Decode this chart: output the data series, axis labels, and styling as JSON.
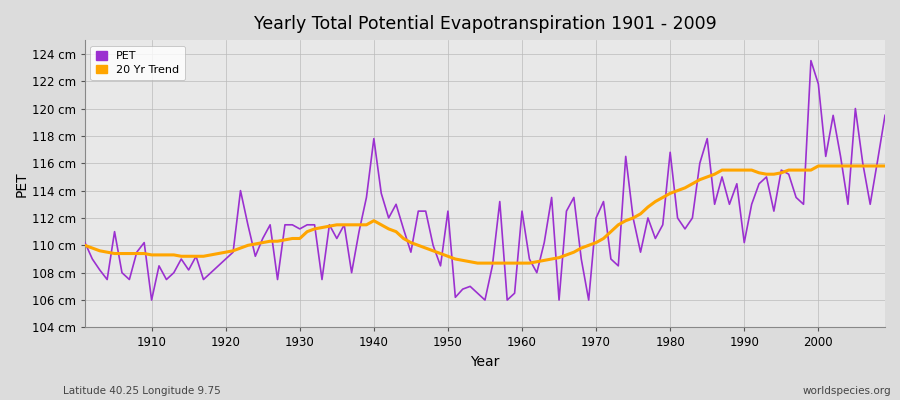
{
  "title": "Yearly Total Potential Evapotranspiration 1901 - 2009",
  "xlabel": "Year",
  "ylabel": "PET",
  "subtitle_left": "Latitude 40.25 Longitude 9.75",
  "subtitle_right": "worldspecies.org",
  "pet_color": "#9B30D0",
  "trend_color": "#FFA500",
  "bg_color": "#DCDCDC",
  "plot_bg_color": "#E8E8E8",
  "ylim": [
    104,
    125
  ],
  "yticks": [
    104,
    106,
    108,
    110,
    112,
    114,
    116,
    118,
    120,
    122,
    124
  ],
  "ytick_labels": [
    "104 cm",
    "106 cm",
    "108 cm",
    "110 cm",
    "112 cm",
    "114 cm",
    "116 cm",
    "118 cm",
    "120 cm",
    "122 cm",
    "124 cm"
  ],
  "years": [
    1901,
    1902,
    1903,
    1904,
    1905,
    1906,
    1907,
    1908,
    1909,
    1910,
    1911,
    1912,
    1913,
    1914,
    1915,
    1916,
    1917,
    1918,
    1919,
    1920,
    1921,
    1922,
    1923,
    1924,
    1925,
    1926,
    1927,
    1928,
    1929,
    1930,
    1931,
    1932,
    1933,
    1934,
    1935,
    1936,
    1937,
    1938,
    1939,
    1940,
    1941,
    1942,
    1943,
    1944,
    1945,
    1946,
    1947,
    1948,
    1949,
    1950,
    1951,
    1952,
    1953,
    1954,
    1955,
    1956,
    1957,
    1958,
    1959,
    1960,
    1961,
    1962,
    1963,
    1964,
    1965,
    1966,
    1967,
    1968,
    1969,
    1970,
    1971,
    1972,
    1973,
    1974,
    1975,
    1976,
    1977,
    1978,
    1979,
    1980,
    1981,
    1982,
    1983,
    1984,
    1985,
    1986,
    1987,
    1988,
    1989,
    1990,
    1991,
    1992,
    1993,
    1994,
    1995,
    1996,
    1997,
    1998,
    1999,
    2000,
    2001,
    2002,
    2003,
    2004,
    2005,
    2006,
    2007,
    2008,
    2009
  ],
  "pet_values": [
    110.2,
    109.0,
    108.2,
    107.5,
    111.0,
    108.0,
    107.5,
    109.5,
    110.2,
    106.0,
    108.5,
    107.5,
    108.0,
    109.0,
    108.2,
    109.2,
    107.5,
    108.0,
    108.5,
    109.0,
    109.5,
    114.0,
    111.5,
    109.2,
    110.5,
    111.5,
    107.5,
    111.5,
    111.5,
    111.2,
    111.5,
    111.5,
    107.5,
    111.5,
    110.5,
    111.5,
    108.0,
    111.0,
    113.5,
    117.8,
    113.8,
    112.0,
    113.0,
    111.2,
    109.5,
    112.5,
    112.5,
    110.0,
    108.5,
    112.5,
    106.2,
    106.8,
    107.0,
    106.5,
    106.0,
    108.5,
    113.2,
    106.0,
    106.5,
    112.5,
    109.0,
    108.0,
    110.2,
    113.5,
    106.0,
    112.5,
    113.5,
    109.0,
    106.0,
    112.0,
    113.2,
    109.0,
    108.5,
    116.5,
    112.0,
    109.5,
    112.0,
    110.5,
    111.5,
    116.8,
    112.0,
    111.2,
    112.0,
    116.0,
    117.8,
    113.0,
    115.0,
    113.0,
    114.5,
    110.2,
    113.0,
    114.5,
    115.0,
    112.5,
    115.5,
    115.2,
    113.5,
    113.0,
    123.5,
    121.8,
    116.5,
    119.5,
    116.5,
    113.0,
    120.0,
    116.0,
    113.0,
    116.2,
    119.5
  ],
  "trend_values_x": [
    1901,
    1902,
    1903,
    1904,
    1905,
    1906,
    1907,
    1908,
    1909,
    1910,
    1911,
    1912,
    1913,
    1914,
    1915,
    1916,
    1917,
    1918,
    1919,
    1920,
    1921,
    1922,
    1923,
    1924,
    1925,
    1926,
    1927,
    1928,
    1929,
    1930,
    1931,
    1932,
    1933,
    1934,
    1935,
    1936,
    1937,
    1938,
    1939,
    1940,
    1941,
    1942,
    1943,
    1944,
    1945,
    1946,
    1947,
    1948,
    1949,
    1950,
    1951,
    1952,
    1953,
    1954,
    1955,
    1956,
    1957,
    1958,
    1959,
    1960,
    1961,
    1962,
    1963,
    1964,
    1965,
    1966,
    1967,
    1968,
    1969,
    1970,
    1971,
    1972,
    1973,
    1974,
    1975,
    1976,
    1977,
    1978,
    1979,
    1980,
    1981,
    1982,
    1983,
    1984,
    1985,
    1986,
    1987,
    1988,
    1989,
    1990,
    1991,
    1992,
    1993,
    1994,
    1995,
    1996,
    1997,
    1998,
    1999,
    2000,
    2001,
    2002,
    2003,
    2004,
    2005,
    2006,
    2007,
    2008,
    2009
  ],
  "trend_values": [
    110.0,
    109.8,
    109.6,
    109.5,
    109.4,
    109.4,
    109.4,
    109.4,
    109.4,
    109.3,
    109.3,
    109.3,
    109.3,
    109.2,
    109.2,
    109.2,
    109.2,
    109.3,
    109.4,
    109.5,
    109.6,
    109.8,
    110.0,
    110.1,
    110.2,
    110.3,
    110.3,
    110.4,
    110.5,
    110.5,
    111.0,
    111.2,
    111.3,
    111.4,
    111.5,
    111.5,
    111.5,
    111.5,
    111.5,
    111.8,
    111.5,
    111.2,
    111.0,
    110.5,
    110.2,
    110.0,
    109.8,
    109.6,
    109.4,
    109.2,
    109.0,
    108.9,
    108.8,
    108.7,
    108.7,
    108.7,
    108.7,
    108.7,
    108.7,
    108.7,
    108.7,
    108.8,
    108.9,
    109.0,
    109.1,
    109.3,
    109.5,
    109.8,
    110.0,
    110.2,
    110.5,
    111.0,
    111.5,
    111.8,
    112.0,
    112.3,
    112.8,
    113.2,
    113.5,
    113.8,
    114.0,
    114.2,
    114.5,
    114.8,
    115.0,
    115.2,
    115.5,
    115.5,
    115.5,
    115.5,
    115.5,
    115.3,
    115.2,
    115.2,
    115.3,
    115.5,
    115.5,
    115.5,
    115.5,
    115.8,
    115.8,
    115.8,
    115.8,
    115.8,
    115.8,
    115.8,
    115.8,
    115.8,
    115.8
  ]
}
